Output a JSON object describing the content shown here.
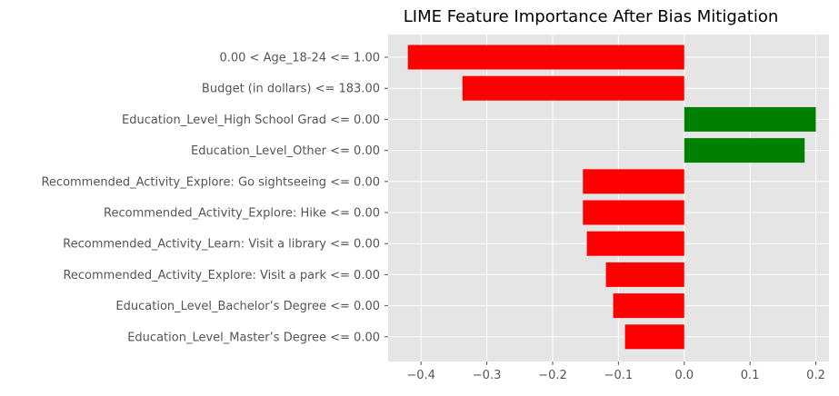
{
  "chart_data": {
    "type": "bar",
    "orientation": "horizontal",
    "title": "LIME Feature Importance After Bias Mitigation",
    "xlabel": "",
    "ylabel": "",
    "categories": [
      "0.00 < Age_18-24 <= 1.00",
      "Budget (in dollars) <= 183.00",
      "Education_Level_High School Grad <= 0.00",
      "Education_Level_Other <= 0.00",
      "Recommended_Activity_Explore: Go sightseeing <= 0.00",
      "Recommended_Activity_Explore: Hike <= 0.00",
      "Recommended_Activity_Learn: Visit a library <= 0.00",
      "Recommended_Activity_Explore: Visit a park <= 0.00",
      "Education_Level_Bachelor’s Degree <= 0.00",
      "Education_Level_Master’s Degree <= 0.00"
    ],
    "values": [
      -0.42,
      -0.337,
      0.2,
      0.183,
      -0.154,
      -0.154,
      -0.148,
      -0.119,
      -0.108,
      -0.09
    ],
    "xlim": [
      -0.45,
      0.22
    ],
    "xticks": [
      -0.4,
      -0.3,
      -0.2,
      -0.1,
      0.0,
      0.1,
      0.2
    ],
    "xtick_labels": [
      "−0.4",
      "−0.3",
      "−0.2",
      "−0.1",
      "0.0",
      "0.1",
      "0.2"
    ],
    "grid": true,
    "colors": {
      "positive": "#008000",
      "negative": "#ff0000",
      "plot_background": "#e5e5e5",
      "grid": "#ffffff"
    }
  }
}
